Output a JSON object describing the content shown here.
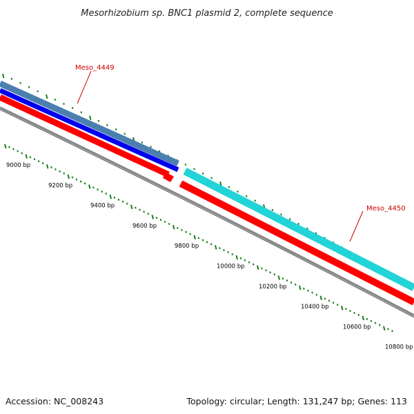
{
  "title": "Mesorhizobium sp. BNC1 plasmid 2, complete sequence",
  "footer": {
    "accession": "Accession: NC_008243",
    "summary": "Topology: circular; Length: 131,247 bp; Genes: 113"
  },
  "colors": {
    "gene_label": "#cc0000",
    "tick": "#1a7a1a",
    "backbone": "#888888",
    "feature_red": "#ff0000",
    "feature_blue": "#0000ee",
    "feature_steel": "#4a7fb0",
    "feature_cyan": "#22d3d8"
  },
  "genes": [
    {
      "name": "Meso_4449"
    },
    {
      "name": "Meso_4450"
    }
  ],
  "bp_scale": [
    {
      "bp": 9000,
      "label": "9000 bp"
    },
    {
      "bp": 9200,
      "label": "9200 bp"
    },
    {
      "bp": 9400,
      "label": "9400 bp"
    },
    {
      "bp": 9600,
      "label": "9600 bp"
    },
    {
      "bp": 9800,
      "label": "9800 bp"
    },
    {
      "bp": 10000,
      "label": "10000 bp"
    },
    {
      "bp": 10200,
      "label": "10200 bp"
    },
    {
      "bp": 10400,
      "label": "10400 bp"
    },
    {
      "bp": 10600,
      "label": "10600 bp"
    },
    {
      "bp": 10800,
      "label": "10800 bp"
    }
  ]
}
